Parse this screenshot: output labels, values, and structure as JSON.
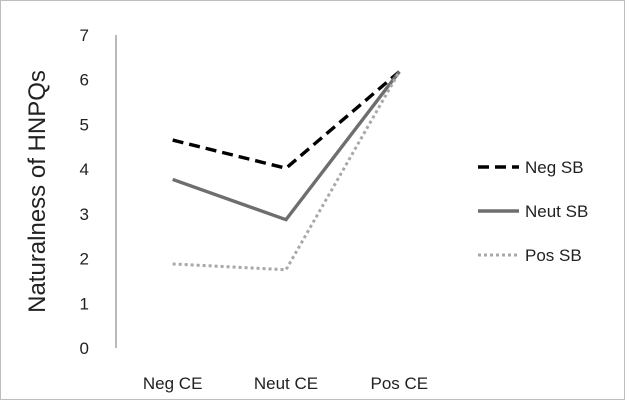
{
  "chart_data": {
    "type": "line",
    "categories": [
      "Neg CE",
      "Neut CE",
      "Pos CE"
    ],
    "series": [
      {
        "name": "Neg SB",
        "values": [
          4.65,
          4.02,
          6.18
        ],
        "color": "#000000",
        "style": "dashed"
      },
      {
        "name": "Neut SB",
        "values": [
          3.77,
          2.87,
          6.18
        ],
        "color": "#6e6e6e",
        "style": "solid"
      },
      {
        "name": "Pos SB",
        "values": [
          1.88,
          1.75,
          6.18
        ],
        "color": "#a8a8a8",
        "style": "dotted"
      }
    ],
    "title": "",
    "xlabel": "",
    "ylabel": "Naturalness of HNPQs",
    "ylim": [
      0,
      7
    ],
    "yticks": [
      "0",
      "1",
      "2",
      "3",
      "4",
      "5",
      "6",
      "7"
    ],
    "grid": false,
    "legend": "right"
  }
}
